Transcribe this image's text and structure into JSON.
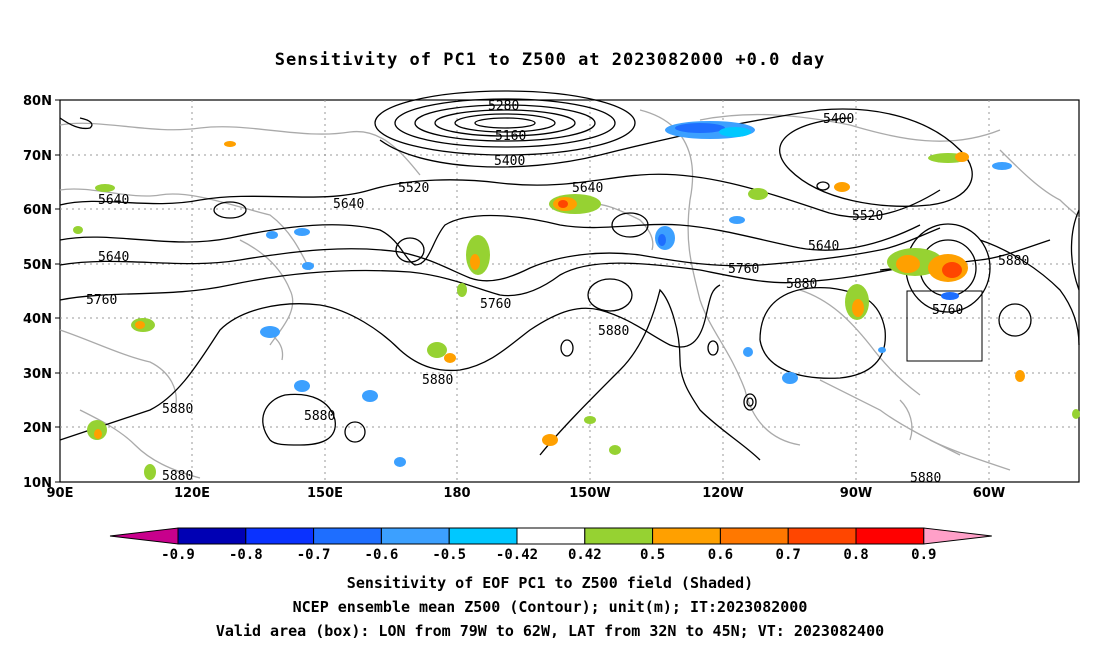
{
  "title": "Sensitivity of PC1 to Z500 at 2023082000 +0.0 day",
  "map": {
    "lat_labels": [
      "80N",
      "70N",
      "60N",
      "50N",
      "40N",
      "30N",
      "20N",
      "10N"
    ],
    "lon_labels": [
      "90E",
      "120E",
      "150E",
      "180",
      "150W",
      "120W",
      "90W",
      "60W"
    ],
    "lat_range": [
      10,
      80
    ],
    "lon_range_east": [
      90,
      337
    ],
    "gridlines": "dotted",
    "contour_labels": [
      {
        "text": "5280"
      },
      {
        "text": "5160"
      },
      {
        "text": "5400"
      },
      {
        "text": "5520"
      },
      {
        "text": "5640"
      },
      {
        "text": "5400"
      },
      {
        "text": "5640"
      },
      {
        "text": "5640"
      },
      {
        "text": "5640"
      },
      {
        "text": "5520"
      },
      {
        "text": "5640"
      },
      {
        "text": "5760"
      },
      {
        "text": "5760"
      },
      {
        "text": "5760"
      },
      {
        "text": "5880"
      },
      {
        "text": "5880"
      },
      {
        "text": "5880"
      },
      {
        "text": "5880"
      },
      {
        "text": "5880"
      },
      {
        "text": "5880"
      },
      {
        "text": "5880"
      },
      {
        "text": "5880"
      },
      {
        "text": "5760"
      }
    ],
    "valid_box": {
      "lon_west": [
        79,
        62
      ],
      "lat_north": [
        32,
        45
      ]
    }
  },
  "colorbar": {
    "labels": [
      "-0.9",
      "-0.8",
      "-0.7",
      "-0.6",
      "-0.5",
      "-0.42",
      "0.42",
      "0.5",
      "0.6",
      "0.7",
      "0.8",
      "0.9"
    ],
    "colors": [
      "#0000b4",
      "#0a32ff",
      "#1e6eff",
      "#3ca0ff",
      "#00c8ff",
      "#ffffff",
      "#96d232",
      "#ffa000",
      "#ff7800",
      "#ff4600",
      "#ff0000"
    ],
    "low_extend_color": "#c8008c",
    "high_extend_color": "#ffa0c8"
  },
  "captions": [
    "Sensitivity of EOF PC1 to Z500 field (Shaded)",
    "NCEP ensemble mean Z500 (Contour); unit(m); IT:2023082000",
    "Valid area (box): LON from 79W to 62W, LAT from 32N to 45N; VT: 2023082400"
  ],
  "colors": {
    "contour": "#000000",
    "coast": "#aaaaaa",
    "grid": "#999999"
  }
}
